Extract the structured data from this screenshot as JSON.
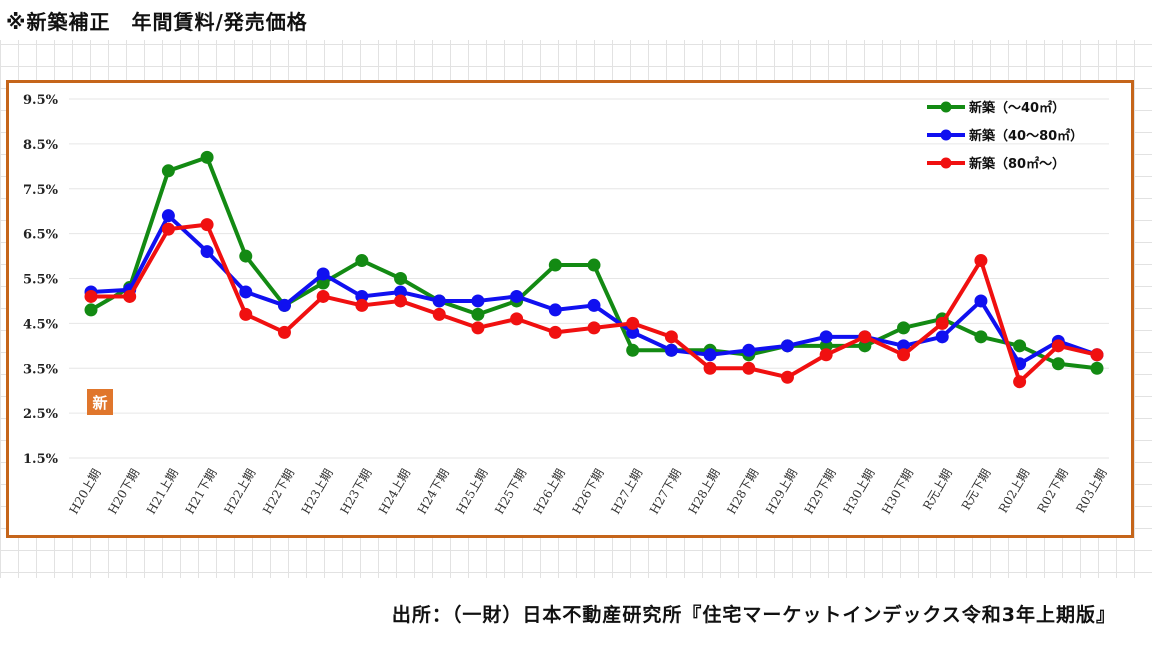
{
  "header": {
    "title": "※新築補正　年間賃料/発売価格"
  },
  "footer": {
    "source": "出所：（一財）日本不動産研究所『住宅マーケットインデックス令和3年上期版』"
  },
  "badge": {
    "text": "新",
    "color": "#e0762c"
  },
  "colors": {
    "frame": "#c5651a",
    "grid": "#e2e2e2"
  },
  "chart_data": {
    "type": "line",
    "title": "",
    "xlabel": "",
    "ylabel": "",
    "ylim": [
      1.5,
      9.5
    ],
    "yticks": [
      "9.5%",
      "8.5%",
      "7.5%",
      "6.5%",
      "5.5%",
      "4.5%",
      "3.5%",
      "2.5%",
      "1.5%"
    ],
    "ytick_values": [
      9.5,
      8.5,
      7.5,
      6.5,
      5.5,
      4.5,
      3.5,
      2.5,
      1.5
    ],
    "grid": true,
    "legend_position": "top-right",
    "categories": [
      "H20上期",
      "H20下期",
      "H21上期",
      "H21下期",
      "H22上期",
      "H22下期",
      "H23上期",
      "H23下期",
      "H24上期",
      "H24下期",
      "H25上期",
      "H25下期",
      "H26上期",
      "H26下期",
      "H27上期",
      "H27下期",
      "H28上期",
      "H28下期",
      "H29上期",
      "H29下期",
      "H30上期",
      "H30下期",
      "R元上期",
      "R元下期",
      "R02上期",
      "R02下期",
      "R03上期"
    ],
    "series": [
      {
        "name": "新築（～40㎡）",
        "color": "#138a13",
        "values": [
          4.8,
          5.3,
          7.9,
          8.2,
          6.0,
          4.9,
          5.4,
          5.9,
          5.5,
          5.0,
          4.7,
          5.0,
          5.8,
          5.8,
          3.9,
          3.9,
          3.9,
          3.8,
          4.0,
          4.0,
          4.0,
          4.4,
          4.6,
          4.2,
          4.0,
          3.6,
          3.5
        ]
      },
      {
        "name": "新築（40～80㎡）",
        "color": "#1010f0",
        "values": [
          5.2,
          5.25,
          6.9,
          6.1,
          5.2,
          4.9,
          5.6,
          5.1,
          5.2,
          5.0,
          5.0,
          5.1,
          4.8,
          4.9,
          4.3,
          3.9,
          3.8,
          3.9,
          4.0,
          4.2,
          4.2,
          4.0,
          4.2,
          5.0,
          3.6,
          4.1,
          3.8
        ]
      },
      {
        "name": "新築（80㎡～）",
        "color": "#f01010",
        "values": [
          5.1,
          5.1,
          6.6,
          6.7,
          4.7,
          4.3,
          5.1,
          4.9,
          5.0,
          4.7,
          4.4,
          4.6,
          4.3,
          4.4,
          4.5,
          4.2,
          3.5,
          3.5,
          3.3,
          3.8,
          4.2,
          3.8,
          4.5,
          5.9,
          3.2,
          4.0,
          3.8
        ]
      }
    ]
  }
}
